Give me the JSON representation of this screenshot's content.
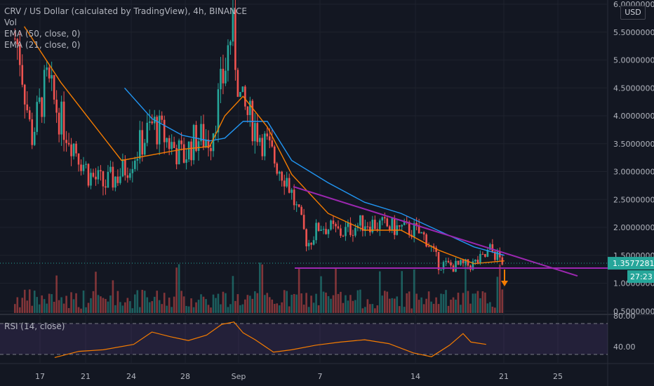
{
  "legend": {
    "title": "CRV / US Dollar (calculated by TradingView), 4h, BINANCE",
    "vol": "Vol",
    "ema50": "EMA (50, close, 0)",
    "ema21": "EMA (21, close, 0)",
    "rsi": "RSI (14, close)"
  },
  "currency_button": "USD",
  "price_tag": {
    "value": "1.3577281",
    "countdown": "27:23",
    "color": "#26a69a"
  },
  "colors": {
    "background": "#131722",
    "up": "#26a69a",
    "down": "#ef5350",
    "ema50": "#2196f3",
    "ema21": "#f57c00",
    "trendline": "#9c27b0",
    "rsi_line": "#f57c00",
    "rsi_band": "#7e57c2",
    "arrow": "#f57c00"
  },
  "chart_data": [
    {
      "type": "candlestick",
      "title": "CRV / US Dollar (calculated by TradingView), 4h, BINANCE",
      "x_ticks": [
        "17",
        "21",
        "24",
        "28",
        "Sep",
        "7",
        "14",
        "21",
        "25"
      ],
      "y_ticks": [
        {
          "value": 6.0,
          "label": "6.0000000"
        },
        {
          "value": 5.5,
          "label": "5.5000000"
        },
        {
          "value": 5.0,
          "label": "5.0000000"
        },
        {
          "value": 4.5,
          "label": "4.5000000"
        },
        {
          "value": 4.0,
          "label": "4.0000000"
        },
        {
          "value": 3.5,
          "label": "3.5000000"
        },
        {
          "value": 3.0,
          "label": "3.0000000"
        },
        {
          "value": 2.5,
          "label": "2.5000000"
        },
        {
          "value": 2.0,
          "label": "2.0000000"
        },
        {
          "value": 1.5,
          "label": "1.5000000"
        },
        {
          "value": 1.0,
          "label": "1.0000000"
        },
        {
          "value": 0.5,
          "label": "0.5000000"
        }
      ],
      "ylim": [
        0.45,
        6.05
      ],
      "grid": true,
      "current_price": 1.3577281,
      "trendlines": [
        {
          "name": "",
          "from": [
            0,
            2.73
          ],
          "to": [
            1,
            1.13
          ]
        },
        {
          "name": "",
          "from": [
            0,
            1.27
          ],
          "to": [
            1,
            1.27
          ]
        }
      ],
      "price_path": [
        [
          0.0,
          6.0
        ],
        [
          0.03,
          5.2
        ],
        [
          0.05,
          3.6
        ],
        [
          0.075,
          4.6
        ],
        [
          0.1,
          3.9
        ],
        [
          0.12,
          3.5
        ],
        [
          0.145,
          2.95
        ],
        [
          0.17,
          2.75
        ],
        [
          0.2,
          3.0
        ],
        [
          0.225,
          3.4
        ],
        [
          0.25,
          3.85
        ],
        [
          0.275,
          3.55
        ],
        [
          0.3,
          3.25
        ],
        [
          0.32,
          3.6
        ],
        [
          0.345,
          3.6
        ],
        [
          0.368,
          4.8
        ],
        [
          0.38,
          5.6
        ],
        [
          0.395,
          4.2
        ],
        [
          0.425,
          3.7
        ],
        [
          0.445,
          3.3
        ],
        [
          0.47,
          2.9
        ],
        [
          0.49,
          2.2
        ],
        [
          0.505,
          1.7
        ],
        [
          0.525,
          2.05
        ],
        [
          0.56,
          1.9
        ],
        [
          0.6,
          2.1
        ],
        [
          0.64,
          2.0
        ],
        [
          0.68,
          1.95
        ],
        [
          0.7,
          1.8
        ],
        [
          0.72,
          1.35
        ],
        [
          0.745,
          1.3
        ],
        [
          0.775,
          1.33
        ],
        [
          0.795,
          1.45
        ],
        [
          0.805,
          1.6
        ],
        [
          0.83,
          1.35
        ]
      ],
      "series": [
        {
          "name": "EMA (50, close, 0)",
          "values": [
            [
              0.205,
              4.5
            ],
            [
              0.25,
              3.95
            ],
            [
              0.3,
              3.65
            ],
            [
              0.345,
              3.55
            ],
            [
              0.37,
              3.6
            ],
            [
              0.4,
              3.9
            ],
            [
              0.44,
              3.9
            ],
            [
              0.48,
              3.2
            ],
            [
              0.54,
              2.8
            ],
            [
              0.6,
              2.45
            ],
            [
              0.66,
              2.25
            ],
            [
              0.72,
              1.95
            ],
            [
              0.78,
              1.65
            ],
            [
              0.83,
              1.5
            ]
          ]
        },
        {
          "name": "EMA (21, close, 0)",
          "values": [
            [
              0.04,
              5.6
            ],
            [
              0.1,
              4.6
            ],
            [
              0.15,
              3.9
            ],
            [
              0.2,
              3.2
            ],
            [
              0.25,
              3.3
            ],
            [
              0.3,
              3.4
            ],
            [
              0.345,
              3.45
            ],
            [
              0.37,
              4.0
            ],
            [
              0.4,
              4.35
            ],
            [
              0.44,
              3.8
            ],
            [
              0.48,
              2.95
            ],
            [
              0.54,
              2.25
            ],
            [
              0.6,
              1.95
            ],
            [
              0.66,
              1.95
            ],
            [
              0.72,
              1.6
            ],
            [
              0.78,
              1.35
            ],
            [
              0.83,
              1.4
            ]
          ]
        }
      ]
    },
    {
      "type": "line",
      "title": "RSI (14, close)",
      "y_ticks": [
        {
          "value": 80,
          "label": "80.00"
        },
        {
          "value": 40,
          "label": "40.00"
        }
      ],
      "band": [
        30,
        70
      ],
      "ylim": [
        20,
        80
      ],
      "series": [
        {
          "name": "RSI (14, close)",
          "values": [
            [
              0.09,
              26
            ],
            [
              0.13,
              34
            ],
            [
              0.17,
              36
            ],
            [
              0.22,
              43
            ],
            [
              0.25,
              59
            ],
            [
              0.28,
              53
            ],
            [
              0.31,
              48
            ],
            [
              0.34,
              55
            ],
            [
              0.365,
              69
            ],
            [
              0.385,
              72
            ],
            [
              0.4,
              58
            ],
            [
              0.42,
              49
            ],
            [
              0.45,
              33
            ],
            [
              0.48,
              36
            ],
            [
              0.52,
              42
            ],
            [
              0.56,
              46
            ],
            [
              0.6,
              49
            ],
            [
              0.64,
              44
            ],
            [
              0.68,
              32
            ],
            [
              0.71,
              27
            ],
            [
              0.74,
              42
            ],
            [
              0.762,
              57
            ],
            [
              0.775,
              46
            ],
            [
              0.8,
              43
            ]
          ]
        }
      ]
    }
  ]
}
